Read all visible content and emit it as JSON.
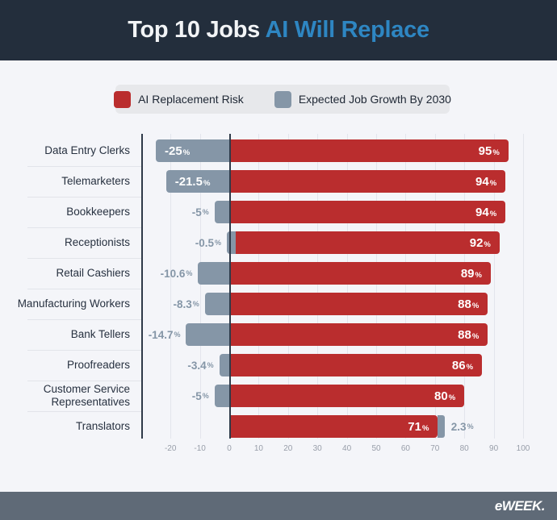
{
  "header": {
    "title_prefix": "Top 10 Jobs ",
    "title_highlight": "AI Will Replace",
    "bg_color": "#232e3c",
    "highlight_color": "#2e86c2"
  },
  "legend": {
    "items": [
      {
        "label": "AI Replacement Risk",
        "color": "#ba2d2e"
      },
      {
        "label": "Expected Job Growth By 2030",
        "color": "#8596a7"
      }
    ]
  },
  "chart_data": {
    "type": "bar",
    "orientation": "horizontal",
    "title": "Top 10 Jobs AI Will Replace",
    "categories": [
      "Data Entry Clerks",
      "Telemarketers",
      "Bookkeepers",
      "Receptionists",
      "Retail Cashiers",
      "Manufacturing Workers",
      "Bank Tellers",
      "Proofreaders",
      "Customer Service Representatives",
      "Translators"
    ],
    "series": [
      {
        "name": "AI Replacement Risk",
        "color": "#ba2d2e",
        "values": [
          95,
          94,
          94,
          92,
          89,
          88,
          88,
          86,
          80,
          71
        ]
      },
      {
        "name": "Expected Job Growth By 2030",
        "color": "#8596a7",
        "values": [
          -25,
          -21.5,
          -5,
          -0.5,
          -10.6,
          -8.3,
          -14.7,
          -3.4,
          -5,
          2.3
        ]
      }
    ],
    "unit": "%",
    "x_ticks": [
      -20,
      -10,
      0,
      10,
      20,
      30,
      40,
      50,
      60,
      70,
      80,
      90,
      100
    ],
    "xlim": [
      -20,
      100
    ],
    "grid": true,
    "legend_position": "top"
  },
  "footer": {
    "logo": "eWEEK."
  }
}
